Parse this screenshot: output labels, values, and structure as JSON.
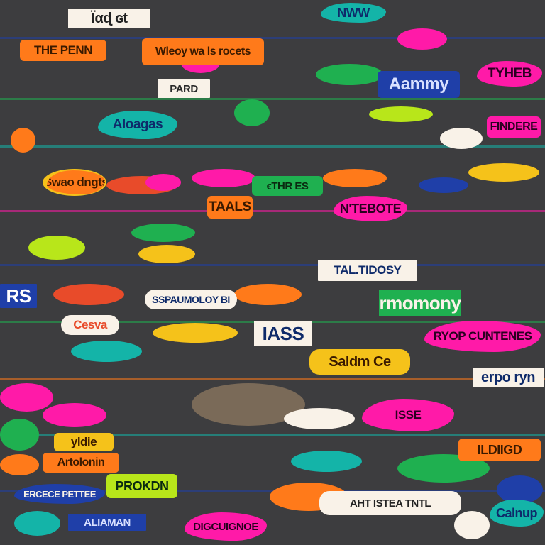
{
  "palette": [
    "#f9f2e8",
    "#ff7a1a",
    "#ff1aa8",
    "#1f3fa8",
    "#1fb050",
    "#14b4a8",
    "#e84b2a",
    "#f5c21a",
    "#0e2a6a",
    "#b8e61a"
  ],
  "tags": [
    {
      "text": "Ϊαɖ ɢt",
      "bg": "#f9f2e8",
      "fg": "#222222"
    },
    {
      "text": "NWW",
      "bg": "#14b4a8",
      "fg": "#0e2a6a"
    },
    {
      "text": "THE PENN",
      "bg": "#ff7a1a",
      "fg": "#3a1a00"
    },
    {
      "text": "Wleoy wa ls rocets",
      "bg": "#ff7a1a",
      "fg": "#3a1a00"
    },
    {
      "text": "TYHEB",
      "bg": "#ff1aa8",
      "fg": "#2a0020"
    },
    {
      "text": "PARD",
      "bg": "#f9f2e8",
      "fg": "#2a2a2a"
    },
    {
      "text": "Aammy",
      "bg": "#1f3fa8",
      "fg": "#d8e0ff"
    },
    {
      "text": "Aloagas",
      "bg": "#14b4a8",
      "fg": "#0e2a6a"
    },
    {
      "text": "FINDERE",
      "bg": "#ff1aa8",
      "fg": "#2a0020"
    },
    {
      "text": "ϵTHR ES",
      "bg": "#1fb050",
      "fg": "#0a2a10"
    },
    {
      "text": "TAALS",
      "bg": "#ff7a1a",
      "fg": "#3a1a00"
    },
    {
      "text": "N'TEBOTE",
      "bg": "#ff1aa8",
      "fg": "#2a0020"
    },
    {
      "text": "Swao dngts",
      "bg": "#ff7a1a",
      "fg": "#3a1a00"
    },
    {
      "text": "RS",
      "bg": "#1f3fa8",
      "fg": "#ffffff"
    },
    {
      "text": "SSPAUMOLOY BI",
      "bg": "#f9f2e8",
      "fg": "#0e2a6a"
    },
    {
      "text": "rmomony",
      "bg": "#1fb050",
      "fg": "#f9f2e8"
    },
    {
      "text": "TAL.TIDOSY",
      "bg": "#f9f2e8",
      "fg": "#0e2a6a"
    },
    {
      "text": "Cesva",
      "bg": "#f9f2e8",
      "fg": "#e84b2a"
    },
    {
      "text": "IASS",
      "bg": "#f9f2e8",
      "fg": "#0e2a6a"
    },
    {
      "text": "RYOP CUNTENES",
      "bg": "#ff1aa8",
      "fg": "#2a0020"
    },
    {
      "text": "Saldm Ce",
      "bg": "#f5c21a",
      "fg": "#3a1a00"
    },
    {
      "text": "erpo ryn",
      "bg": "#f9f2e8",
      "fg": "#0e2a6a"
    },
    {
      "text": "ISSE",
      "bg": "#ff1aa8",
      "fg": "#2a0020"
    },
    {
      "text": "ILDIIGD",
      "bg": "#ff7a1a",
      "fg": "#3a1a00"
    },
    {
      "text": "yldie",
      "bg": "#f5c21a",
      "fg": "#3a1a00"
    },
    {
      "text": "Artolonin",
      "bg": "#ff7a1a",
      "fg": "#3a1a00"
    },
    {
      "text": "ERCECE PETTEE",
      "bg": "#1f3fa8",
      "fg": "#f9f2e8"
    },
    {
      "text": "PROKDN",
      "bg": "#b8e61a",
      "fg": "#0a2a10"
    },
    {
      "text": "AHT ISTEA TNTL",
      "bg": "#f9f2e8",
      "fg": "#222222"
    },
    {
      "text": "Calnup",
      "bg": "#14b4a8",
      "fg": "#0e2a6a"
    },
    {
      "text": "DIGCUIGNOE",
      "bg": "#ff1aa8",
      "fg": "#2a0020"
    },
    {
      "text": "ALIAMAN",
      "bg": "#1f3fa8",
      "fg": "#d8e0ff"
    }
  ]
}
